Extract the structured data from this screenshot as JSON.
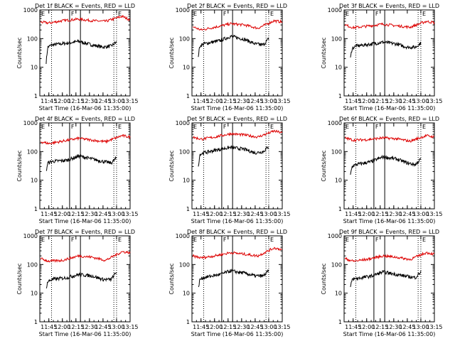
{
  "chart_data": {
    "type": "line",
    "panels": [
      {
        "title": "Det 1f BLACK = Events, RED = LLD",
        "series": [
          {
            "name": "Events",
            "color": "#000000",
            "values": [
              [
                11.7,
                15
              ],
              [
                11.73,
                50
              ],
              [
                11.8,
                60
              ],
              [
                12.1,
                70
              ],
              [
                12.3,
                80
              ],
              [
                12.55,
                60
              ],
              [
                12.75,
                50
              ],
              [
                12.9,
                55
              ],
              [
                13.0,
                75
              ]
            ]
          },
          {
            "name": "LLD",
            "color": "#dd0000",
            "values": [
              [
                11.6,
                380
              ],
              [
                11.75,
                350
              ],
              [
                12.0,
                420
              ],
              [
                12.3,
                480
              ],
              [
                12.55,
                420
              ],
              [
                12.8,
                400
              ],
              [
                13.1,
                600
              ],
              [
                13.25,
                450
              ]
            ]
          }
        ]
      },
      {
        "title": "Det 2f BLACK = Events, RED = LLD",
        "series": [
          {
            "name": "Events",
            "color": "#000000",
            "values": [
              [
                11.7,
                25
              ],
              [
                11.73,
                55
              ],
              [
                11.8,
                65
              ],
              [
                12.1,
                85
              ],
              [
                12.3,
                120
              ],
              [
                12.55,
                95
              ],
              [
                12.75,
                65
              ],
              [
                12.9,
                60
              ],
              [
                13.0,
                100
              ]
            ]
          },
          {
            "name": "LLD",
            "color": "#dd0000",
            "values": [
              [
                11.6,
                260
              ],
              [
                11.75,
                200
              ],
              [
                12.0,
                250
              ],
              [
                12.3,
                330
              ],
              [
                12.55,
                300
              ],
              [
                12.8,
                230
              ],
              [
                13.1,
                420
              ],
              [
                13.25,
                380
              ]
            ]
          }
        ]
      },
      {
        "title": "Det 3f BLACK = Events, RED = LLD",
        "series": [
          {
            "name": "Events",
            "color": "#000000",
            "values": [
              [
                11.7,
                20
              ],
              [
                11.73,
                45
              ],
              [
                11.8,
                55
              ],
              [
                12.1,
                65
              ],
              [
                12.3,
                75
              ],
              [
                12.55,
                65
              ],
              [
                12.75,
                50
              ],
              [
                12.9,
                50
              ],
              [
                13.0,
                70
              ]
            ]
          },
          {
            "name": "LLD",
            "color": "#dd0000",
            "values": [
              [
                11.6,
                300
              ],
              [
                11.75,
                240
              ],
              [
                12.0,
                270
              ],
              [
                12.3,
                320
              ],
              [
                12.55,
                280
              ],
              [
                12.8,
                250
              ],
              [
                13.1,
                400
              ],
              [
                13.25,
                360
              ]
            ]
          }
        ]
      },
      {
        "title": "Det 4f BLACK = Events, RED = LLD",
        "series": [
          {
            "name": "Events",
            "color": "#000000",
            "values": [
              [
                11.7,
                20
              ],
              [
                11.73,
                40
              ],
              [
                11.8,
                45
              ],
              [
                12.1,
                50
              ],
              [
                12.3,
                70
              ],
              [
                12.55,
                55
              ],
              [
                12.75,
                45
              ],
              [
                12.9,
                40
              ],
              [
                13.0,
                60
              ]
            ]
          },
          {
            "name": "LLD",
            "color": "#dd0000",
            "values": [
              [
                11.6,
                220
              ],
              [
                11.75,
                190
              ],
              [
                12.0,
                230
              ],
              [
                12.3,
                290
              ],
              [
                12.55,
                250
              ],
              [
                12.8,
                220
              ],
              [
                13.1,
                360
              ],
              [
                13.25,
                320
              ]
            ]
          }
        ]
      },
      {
        "title": "Det 5f BLACK = Events, RED = LLD",
        "series": [
          {
            "name": "Events",
            "color": "#000000",
            "values": [
              [
                11.7,
                30
              ],
              [
                11.73,
                80
              ],
              [
                11.8,
                90
              ],
              [
                12.1,
                120
              ],
              [
                12.3,
                140
              ],
              [
                12.55,
                120
              ],
              [
                12.75,
                90
              ],
              [
                12.9,
                100
              ],
              [
                13.0,
                150
              ]
            ]
          },
          {
            "name": "LLD",
            "color": "#dd0000",
            "values": [
              [
                11.6,
                320
              ],
              [
                11.75,
                270
              ],
              [
                12.0,
                320
              ],
              [
                12.3,
                420
              ],
              [
                12.55,
                380
              ],
              [
                12.8,
                320
              ],
              [
                13.1,
                520
              ],
              [
                13.25,
                450
              ]
            ]
          }
        ]
      },
      {
        "title": "Det 6f BLACK = Events, RED = LLD",
        "series": [
          {
            "name": "Events",
            "color": "#000000",
            "values": [
              [
                11.7,
                15
              ],
              [
                11.73,
                30
              ],
              [
                11.8,
                35
              ],
              [
                12.1,
                45
              ],
              [
                12.3,
                65
              ],
              [
                12.55,
                55
              ],
              [
                12.75,
                40
              ],
              [
                12.9,
                35
              ],
              [
                13.0,
                55
              ]
            ]
          },
          {
            "name": "LLD",
            "color": "#dd0000",
            "values": [
              [
                11.6,
                300
              ],
              [
                11.75,
                250
              ],
              [
                12.0,
                260
              ],
              [
                12.3,
                300
              ],
              [
                12.55,
                280
              ],
              [
                12.8,
                230
              ],
              [
                13.1,
                360
              ],
              [
                13.25,
                320
              ]
            ]
          }
        ]
      },
      {
        "title": "Det 7f BLACK = Events, RED = LLD",
        "series": [
          {
            "name": "Events",
            "color": "#000000",
            "values": [
              [
                11.7,
                15
              ],
              [
                11.73,
                25
              ],
              [
                11.8,
                30
              ],
              [
                12.1,
                35
              ],
              [
                12.3,
                45
              ],
              [
                12.55,
                40
              ],
              [
                12.75,
                30
              ],
              [
                12.9,
                30
              ],
              [
                13.0,
                55
              ]
            ]
          },
          {
            "name": "LLD",
            "color": "#dd0000",
            "values": [
              [
                11.6,
                160
              ],
              [
                11.75,
                130
              ],
              [
                12.0,
                140
              ],
              [
                12.3,
                200
              ],
              [
                12.55,
                180
              ],
              [
                12.8,
                140
              ],
              [
                13.1,
                280
              ],
              [
                13.25,
                260
              ]
            ]
          }
        ]
      },
      {
        "title": "Det 8f BLACK = Events, RED = LLD",
        "series": [
          {
            "name": "Events",
            "color": "#000000",
            "values": [
              [
                11.7,
                15
              ],
              [
                11.73,
                30
              ],
              [
                11.8,
                35
              ],
              [
                12.1,
                45
              ],
              [
                12.3,
                60
              ],
              [
                12.55,
                50
              ],
              [
                12.75,
                40
              ],
              [
                12.9,
                40
              ],
              [
                13.0,
                60
              ]
            ]
          },
          {
            "name": "LLD",
            "color": "#dd0000",
            "values": [
              [
                11.6,
                200
              ],
              [
                11.75,
                170
              ],
              [
                12.0,
                200
              ],
              [
                12.3,
                260
              ],
              [
                12.55,
                230
              ],
              [
                12.8,
                200
              ],
              [
                13.1,
                380
              ],
              [
                13.25,
                330
              ]
            ]
          }
        ]
      },
      {
        "title": "Det 9f BLACK = Events, RED = LLD",
        "series": [
          {
            "name": "Events",
            "color": "#000000",
            "values": [
              [
                11.7,
                15
              ],
              [
                11.73,
                30
              ],
              [
                11.8,
                32
              ],
              [
                12.1,
                40
              ],
              [
                12.3,
                55
              ],
              [
                12.55,
                45
              ],
              [
                12.75,
                38
              ],
              [
                12.9,
                35
              ],
              [
                13.0,
                55
              ]
            ]
          },
          {
            "name": "LLD",
            "color": "#dd0000",
            "values": [
              [
                11.6,
                160
              ],
              [
                11.75,
                130
              ],
              [
                12.0,
                150
              ],
              [
                12.3,
                200
              ],
              [
                12.55,
                180
              ],
              [
                12.8,
                150
              ],
              [
                13.1,
                260
              ],
              [
                13.25,
                230
              ]
            ]
          }
        ]
      }
    ],
    "xlabel": "Start Time (16-Mar-06 11:35:00)",
    "ylabel": "Counts/sec",
    "xlim": [
      "11:35",
      "13:15"
    ],
    "x_tick_labels": [
      "11:45",
      "12:00",
      "12:15",
      "12:30",
      "12:45",
      "13:00",
      "13:15"
    ],
    "y_scale": "log",
    "ylim": [
      1,
      1000
    ],
    "y_tick_labels": [
      "1",
      "10",
      "100",
      "1000"
    ],
    "markers": [
      {
        "label": "E",
        "x": "11:35",
        "style": "solid"
      },
      {
        "label": "",
        "x": "11:48",
        "style": "dotted"
      },
      {
        "label": "F",
        "x": "12:08",
        "style": "solid"
      },
      {
        "label": "",
        "x": "12:20",
        "style": "solid"
      },
      {
        "label": "",
        "x": "12:57",
        "style": "dotted"
      },
      {
        "label": "E",
        "x": "13:00",
        "style": "dotted"
      }
    ],
    "grid": false,
    "legend": "in titles"
  }
}
